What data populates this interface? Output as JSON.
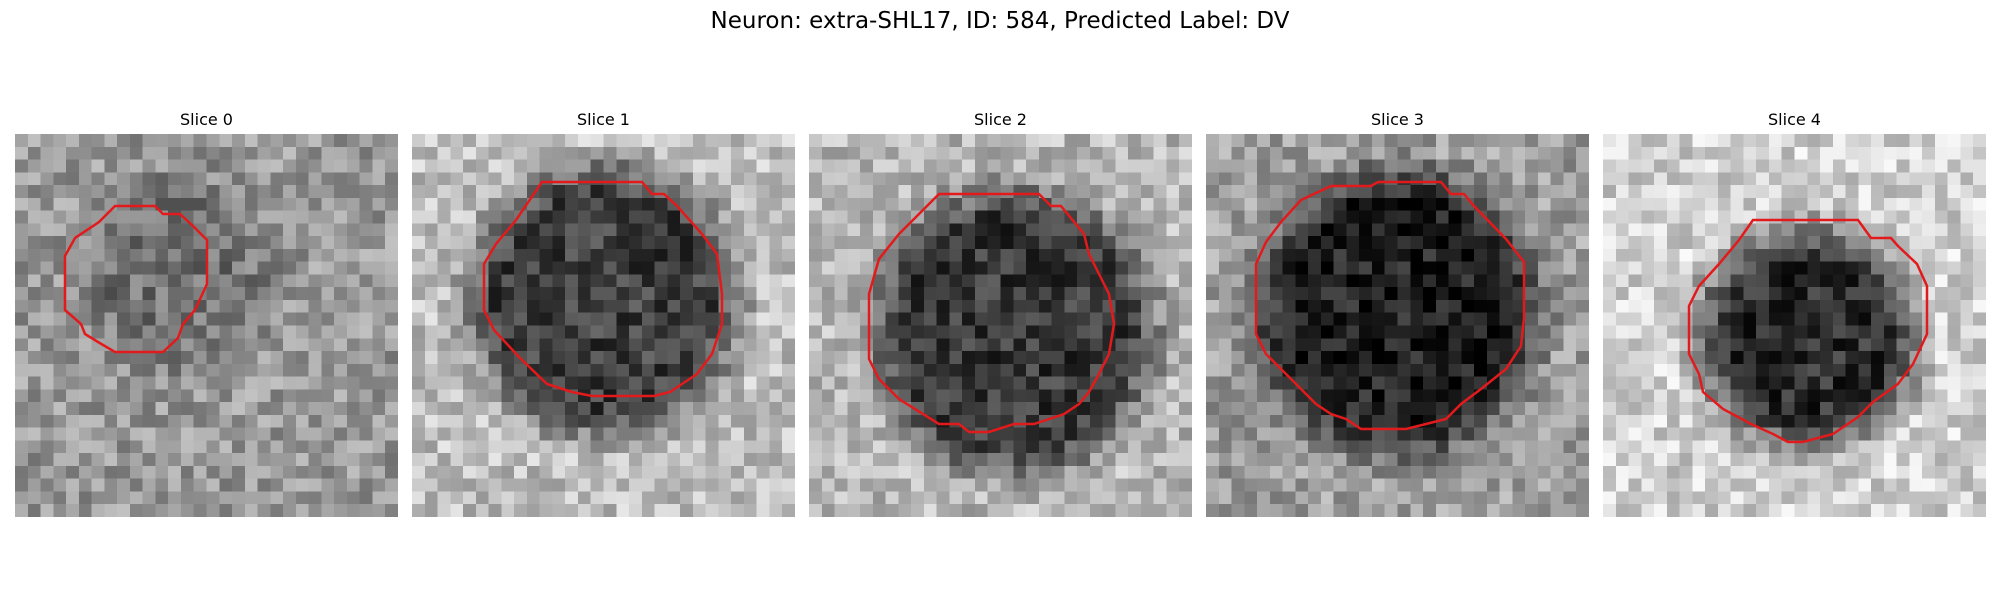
{
  "figure": {
    "title": "Neuron: extra-SHL17, ID: 584, Predicted Label: DV",
    "contour_color": "#e31a1c",
    "colormap": "gray",
    "slices": [
      {
        "title": "Slice 0"
      },
      {
        "title": "Slice 1"
      },
      {
        "title": "Slice 2"
      },
      {
        "title": "Slice 3"
      },
      {
        "title": "Slice 4"
      }
    ]
  }
}
